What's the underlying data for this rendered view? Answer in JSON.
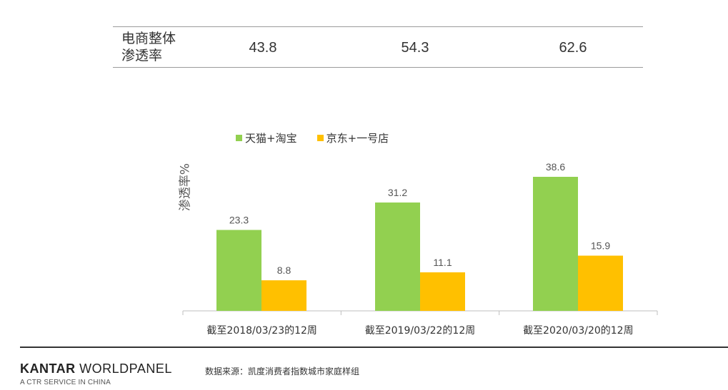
{
  "summary": {
    "label_line1": "电商整体",
    "label_line2": "渗透率",
    "values": [
      "43.8",
      "54.3",
      "62.6"
    ]
  },
  "footer": {
    "brand_bold": "KANTAR",
    "brand_rest": " WORLDPANEL",
    "brand_sub": "A CTR SERVICE IN CHINA",
    "source": "数据来源：凯度消费者指数城市家庭样组"
  },
  "chart_data": {
    "type": "bar",
    "title": "",
    "xlabel": "",
    "ylabel": "渗透率%",
    "ylim": [
      0,
      45
    ],
    "categories": [
      "截至2018/03/23的12周",
      "截至2019/03/22的12周",
      "截至2020/03/20的12周"
    ],
    "series": [
      {
        "name": "天猫+淘宝",
        "color": "#92d050",
        "values": [
          23.3,
          31.2,
          38.6
        ]
      },
      {
        "name": "京东+一号店",
        "color": "#ffc000",
        "values": [
          8.8,
          11.1,
          15.9
        ]
      }
    ],
    "legend_position": "top",
    "grid": false
  }
}
